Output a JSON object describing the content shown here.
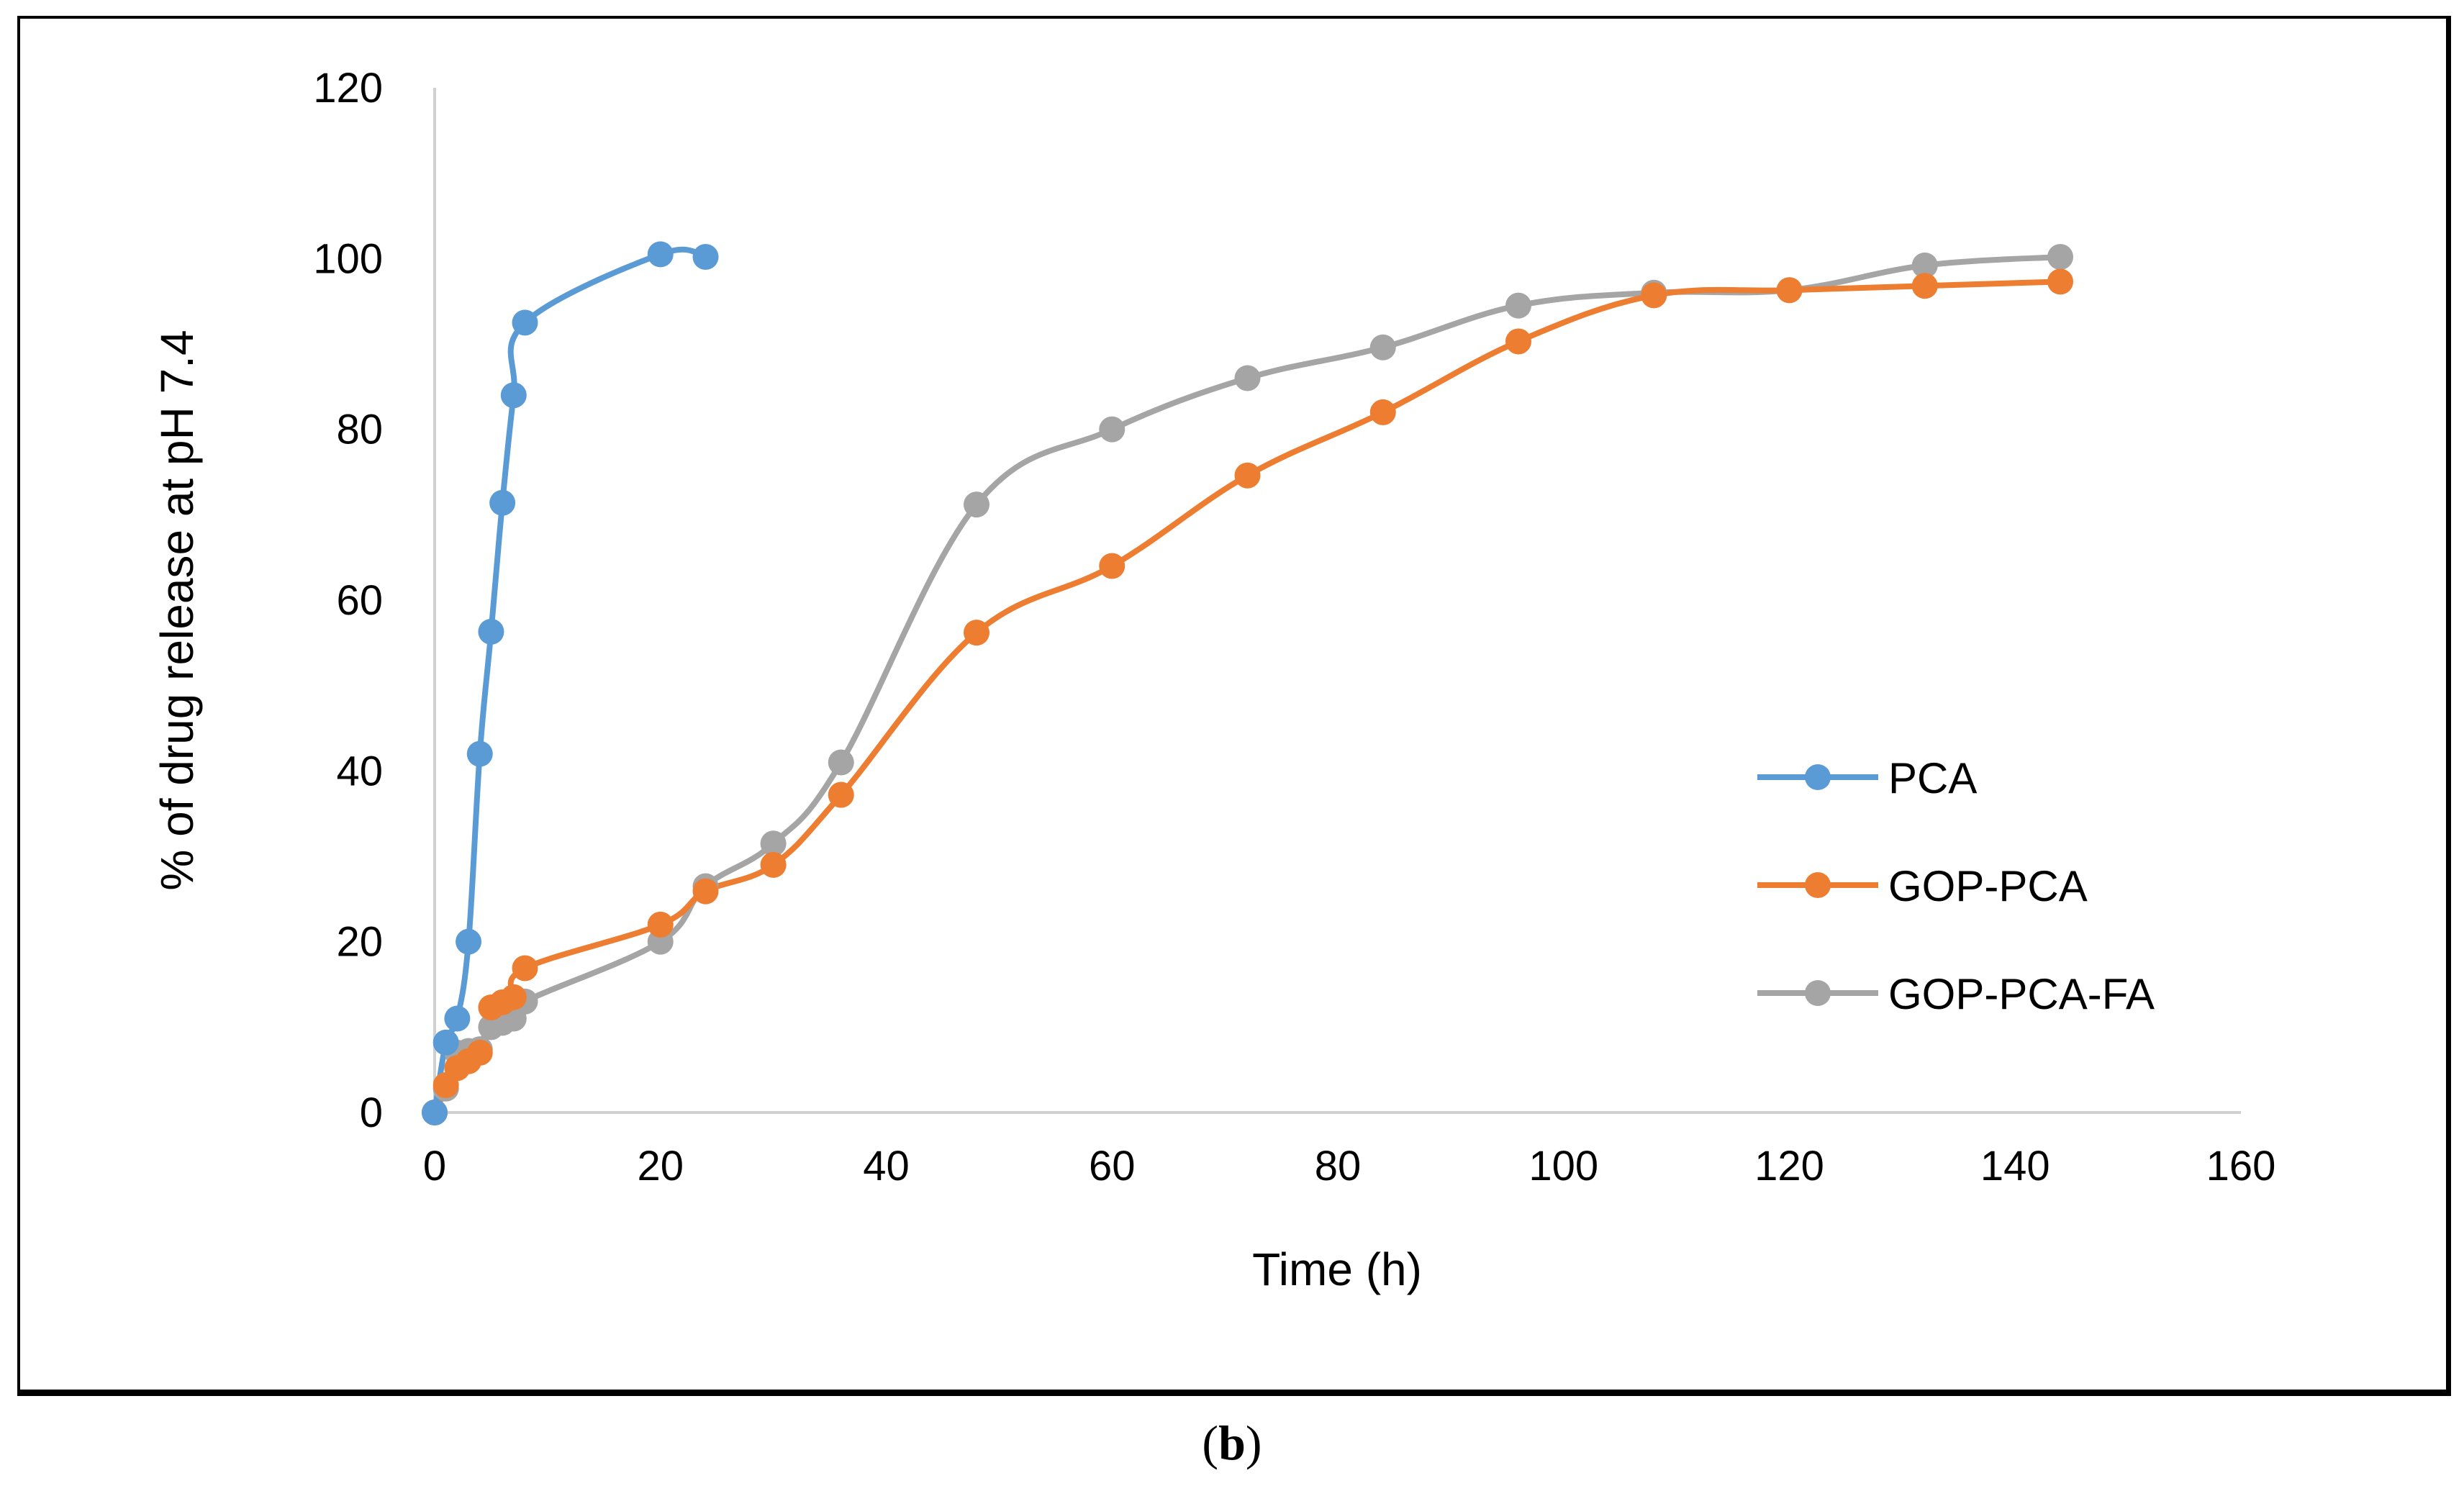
{
  "caption": {
    "open": "(",
    "letter": "b",
    "close": ")"
  },
  "chart_data": {
    "type": "line",
    "title": "",
    "xlabel": "Time (h)",
    "ylabel": "% of drug release at pH 7.4",
    "xlim": [
      0,
      160
    ],
    "ylim": [
      0,
      120
    ],
    "xticks": [
      0,
      20,
      40,
      60,
      80,
      100,
      120,
      140,
      160
    ],
    "yticks": [
      0,
      20,
      40,
      60,
      80,
      100,
      120
    ],
    "grid": false,
    "legend_position": "right",
    "series": [
      {
        "name": "PCA",
        "color": "#5B9BD5",
        "x": [
          0,
          1,
          2,
          3,
          4,
          5,
          6,
          7,
          8,
          20,
          24
        ],
        "y": [
          0,
          8.2,
          11,
          20,
          42,
          56.3,
          71.4,
          84,
          92.5,
          100.5,
          100.2
        ]
      },
      {
        "name": "GOP-PCA",
        "color": "#ED7D31",
        "x": [
          0,
          1,
          2,
          3,
          4,
          5,
          6,
          7,
          8,
          20,
          24,
          30,
          36,
          48,
          60,
          72,
          84,
          96,
          108,
          120,
          132,
          144
        ],
        "y": [
          0,
          3.2,
          5.2,
          6.0,
          7.0,
          12.3,
          12.9,
          13.5,
          16.9,
          22.0,
          25.9,
          29.0,
          37.2,
          56.2,
          64.0,
          74.6,
          82.0,
          90.3,
          95.7,
          96.3,
          96.8,
          97.3
        ]
      },
      {
        "name": "GOP-PCA-FA",
        "color": "#A5A5A5",
        "x": [
          0,
          1,
          2,
          3,
          4,
          5,
          6,
          7,
          8,
          20,
          24,
          30,
          36,
          48,
          60,
          72,
          84,
          96,
          108,
          120,
          132,
          144
        ],
        "y": [
          0,
          2.8,
          7.0,
          7.2,
          7.4,
          10.0,
          10.5,
          11.0,
          13.0,
          20.0,
          26.5,
          31.5,
          41.0,
          71.2,
          80.0,
          86.0,
          89.6,
          94.5,
          96.0,
          96.3,
          99.2,
          100.2
        ]
      }
    ]
  }
}
